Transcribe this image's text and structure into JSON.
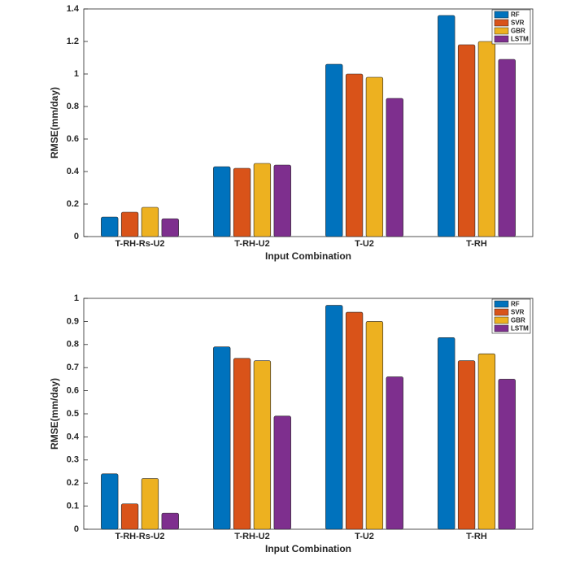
{
  "chart_data": [
    {
      "type": "bar",
      "x_label": "Input Combination",
      "y_label": "RMSE(mm/day)",
      "categories": [
        "T-RH-Rs-U2",
        "T-RH-U2",
        "T-U2",
        "T-RH"
      ],
      "series": [
        {
          "name": "RF",
          "color": "#0072bd",
          "values": [
            0.12,
            0.43,
            1.06,
            1.36
          ]
        },
        {
          "name": "SVR",
          "color": "#d95319",
          "values": [
            0.15,
            0.42,
            1.0,
            1.18
          ]
        },
        {
          "name": "GBR",
          "color": "#edb120",
          "values": [
            0.18,
            0.45,
            0.98,
            1.2
          ]
        },
        {
          "name": "LSTM",
          "color": "#7e2f8e",
          "values": [
            0.11,
            0.44,
            0.85,
            1.09
          ]
        }
      ],
      "ylim": [
        0,
        1.4
      ],
      "yticks": [
        0,
        0.2,
        0.4,
        0.6,
        0.8,
        1,
        1.2,
        1.4
      ],
      "legend": "upper right"
    },
    {
      "type": "bar",
      "x_label": "Input Combination",
      "y_label": "RMSE(mm/day)",
      "categories": [
        "T-RH-Rs-U2",
        "T-RH-U2",
        "T-U2",
        "T-RH"
      ],
      "series": [
        {
          "name": "RF",
          "color": "#0072bd",
          "values": [
            0.24,
            0.79,
            0.97,
            0.83
          ]
        },
        {
          "name": "SVR",
          "color": "#d95319",
          "values": [
            0.11,
            0.74,
            0.94,
            0.73
          ]
        },
        {
          "name": "GBR",
          "color": "#edb120",
          "values": [
            0.22,
            0.73,
            0.9,
            0.76
          ]
        },
        {
          "name": "LSTM",
          "color": "#7e2f8e",
          "values": [
            0.07,
            0.49,
            0.66,
            0.65
          ]
        }
      ],
      "ylim": [
        0,
        1
      ],
      "yticks": [
        0,
        0.1,
        0.2,
        0.3,
        0.4,
        0.5,
        0.6,
        0.7,
        0.8,
        0.9,
        1
      ],
      "legend": "upper right"
    }
  ]
}
